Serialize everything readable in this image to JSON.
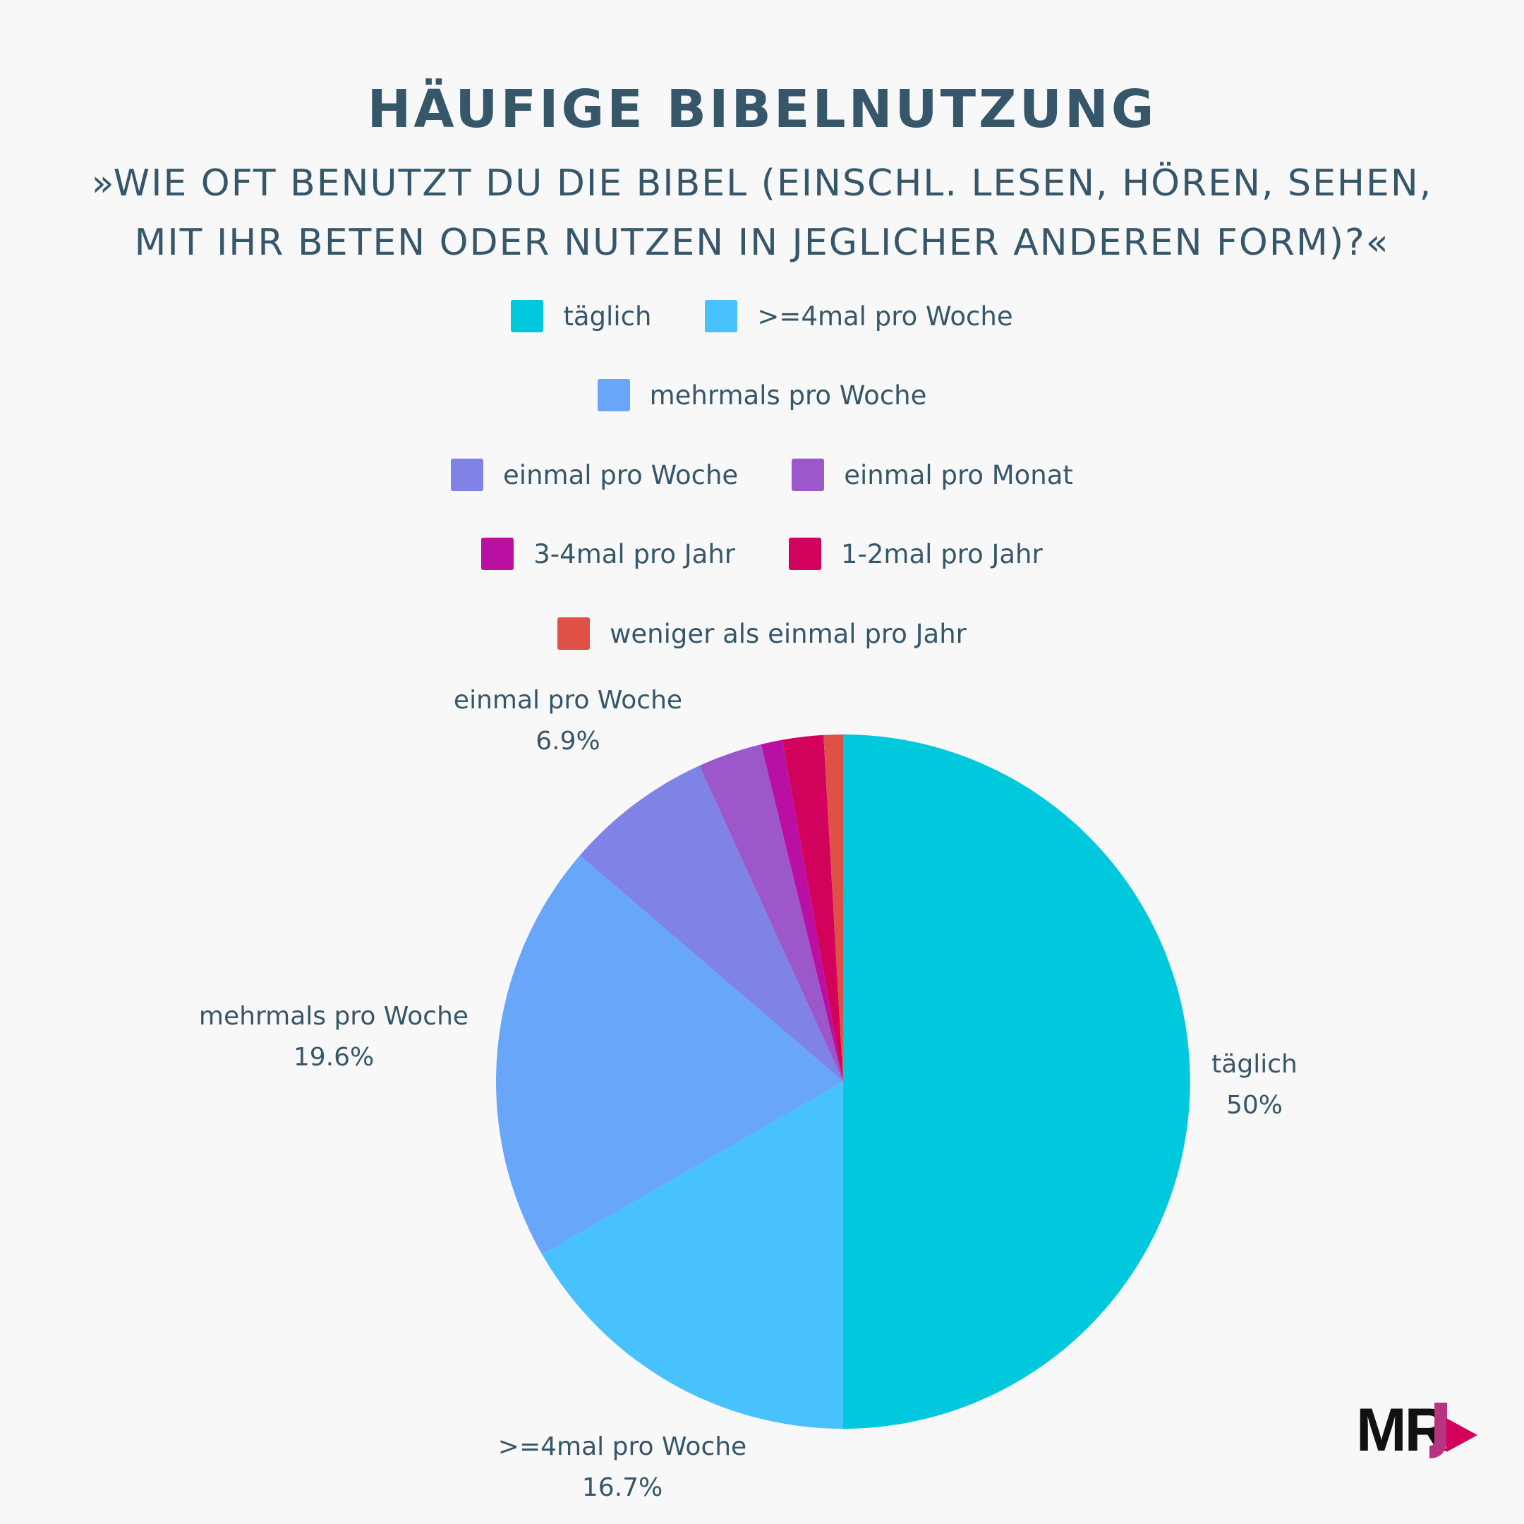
{
  "header": {
    "title": "HÄUFIGE BIBELNUTZUNG",
    "subtitle_line1": "»WIE OFT BENUTZT DU DIE BIBEL (EINSCHL. LESEN, HÖREN, SEHEN,",
    "subtitle_line2": "MIT IHR BETEN ODER NUTZEN IN JEGLICHER ANDEREN FORM)?«"
  },
  "legend": {
    "placement": "top-center",
    "items": [
      {
        "label": "täglich",
        "color": "#00c8dd"
      },
      {
        "label": ">=4mal pro Woche",
        "color": "#47c2fd"
      },
      {
        "label": "mehrmals pro Woche",
        "color": "#67a6f9"
      },
      {
        "label": "einmal pro Woche",
        "color": "#8083e6"
      },
      {
        "label": "einmal pro Monat",
        "color": "#9c58cb"
      },
      {
        "label": "3-4mal pro Jahr",
        "color": "#b90fa3"
      },
      {
        "label": "1-2mal pro Jahr",
        "color": "#d2025c"
      },
      {
        "label": "weniger als einmal pro Jahr",
        "color": "#df5046"
      }
    ]
  },
  "chart_data": {
    "type": "pie",
    "title": "HÄUFIGE BIBELNUTZUNG",
    "categories": [
      "täglich",
      ">=4mal pro Woche",
      "mehrmals pro Woche",
      "einmal pro Woche",
      "einmal pro Monat",
      "3-4mal pro Jahr",
      "1-2mal pro Jahr",
      "weniger als einmal pro Jahr"
    ],
    "values": [
      50,
      16.7,
      19.6,
      6.9,
      3.0,
      1.0,
      1.9,
      0.9
    ],
    "value_labels": [
      "50%",
      "16.7%",
      "19.6%",
      "6.9%",
      null,
      null,
      null,
      null
    ],
    "colors": [
      "#00c8dd",
      "#47c2fd",
      "#67a6f9",
      "#8083e6",
      "#9c58cb",
      "#b90fa3",
      "#d2025c",
      "#df5046"
    ],
    "start": "12 o'clock",
    "direction": "clockwise"
  },
  "brand": {
    "logo_text": "MRJ",
    "logo_accent": "#b83280"
  }
}
